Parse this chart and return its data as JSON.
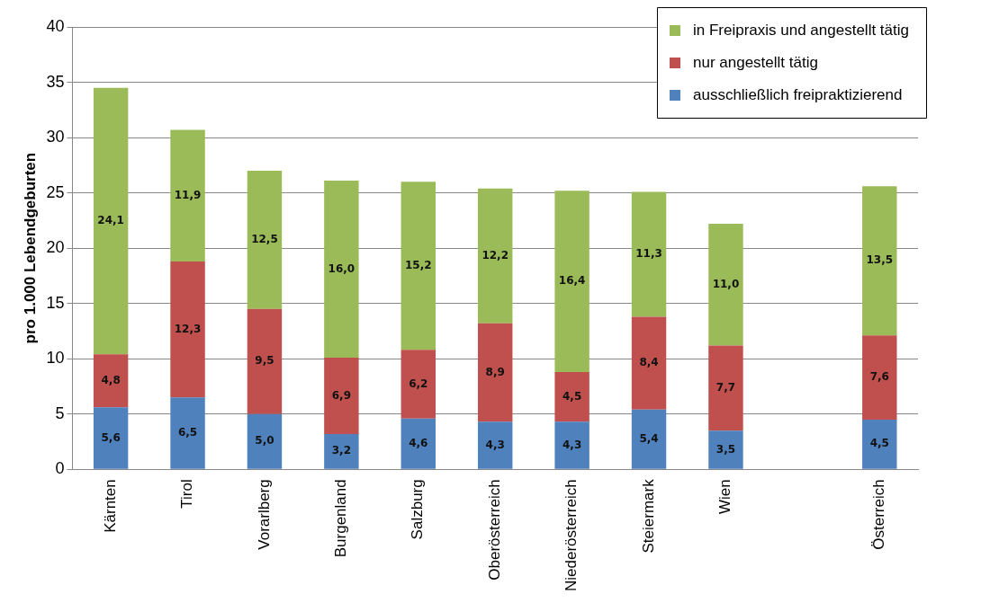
{
  "chart_data": {
    "type": "bar",
    "stacked": true,
    "ylabel": "pro 1.000 Lebendgeburten",
    "categories": [
      "Kärnten",
      "Tirol",
      "Vorarlberg",
      "Burgenland",
      "Salzburg",
      "Oberösterreich",
      "Niederösterreich",
      "Steiermark",
      "Wien",
      null,
      "Österreich"
    ],
    "series": [
      {
        "name": "ausschließlich freipraktizierend",
        "color": "#4f81bd",
        "values": [
          5.6,
          6.5,
          5.0,
          3.2,
          4.6,
          4.3,
          4.3,
          5.4,
          3.5,
          null,
          4.5
        ],
        "value_labels": [
          "5,6",
          "6,5",
          "5,0",
          "3,2",
          "4,6",
          "4,3",
          "4,3",
          "5,4",
          "3,5",
          null,
          "4,5"
        ]
      },
      {
        "name": "nur angestellt tätig",
        "color": "#c0504d",
        "values": [
          4.8,
          12.3,
          9.5,
          6.9,
          6.2,
          8.9,
          4.5,
          8.4,
          7.7,
          null,
          7.6
        ],
        "value_labels": [
          "4,8",
          "12,3",
          "9,5",
          "6,9",
          "6,2",
          "8,9",
          "4,5",
          "8,4",
          "7,7",
          null,
          "7,6"
        ]
      },
      {
        "name": "in Freipraxis und angestellt tätig",
        "color": "#9bbb59",
        "values": [
          24.1,
          11.9,
          12.5,
          16.0,
          15.2,
          12.2,
          16.4,
          11.3,
          11.0,
          null,
          13.5
        ],
        "value_labels": [
          "24,1",
          "11,9",
          "12,5",
          "16,0",
          "15,2",
          "12,2",
          "16,4",
          "11,3",
          "11,0",
          null,
          "13,5"
        ]
      }
    ],
    "ylim": [
      0,
      40
    ],
    "yticks": [
      0,
      5,
      10,
      15,
      20,
      25,
      30,
      35,
      40
    ],
    "grid": "y",
    "legend": "top right"
  }
}
